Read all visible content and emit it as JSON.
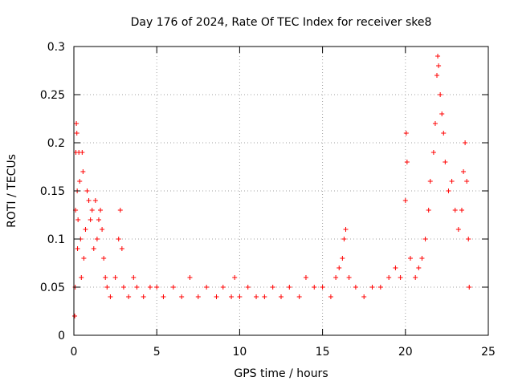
{
  "chart_data": {
    "type": "scatter",
    "title": "Day 176 of 2024, Rate Of TEC Index for receiver ske8",
    "xlabel": "GPS time / hours",
    "ylabel": "ROTI / TECUs",
    "xlim": [
      0,
      25
    ],
    "ylim": [
      0,
      0.3
    ],
    "xticks": [
      0,
      5,
      10,
      15,
      20,
      25
    ],
    "xtick_labels": [
      "0",
      "5",
      "10",
      "15",
      "20",
      "25"
    ],
    "yticks": [
      0,
      0.05,
      0.1,
      0.15,
      0.2,
      0.25,
      0.3
    ],
    "ytick_labels": [
      "0",
      "0.05",
      "0.1",
      "0.15",
      "0.2",
      "0.25",
      "0.3"
    ],
    "grid": true,
    "marker": "+",
    "color": "#ff0000",
    "series": [
      {
        "name": "ROTI",
        "points": [
          [
            0.05,
            0.02
          ],
          [
            0.08,
            0.05
          ],
          [
            0.1,
            0.13
          ],
          [
            0.12,
            0.19
          ],
          [
            0.15,
            0.22
          ],
          [
            0.18,
            0.21
          ],
          [
            0.2,
            0.15
          ],
          [
            0.22,
            0.09
          ],
          [
            0.25,
            0.12
          ],
          [
            0.3,
            0.19
          ],
          [
            0.35,
            0.16
          ],
          [
            0.4,
            0.1
          ],
          [
            0.45,
            0.06
          ],
          [
            0.5,
            0.19
          ],
          [
            0.55,
            0.17
          ],
          [
            0.6,
            0.08
          ],
          [
            0.7,
            0.11
          ],
          [
            0.8,
            0.15
          ],
          [
            0.9,
            0.14
          ],
          [
            1.0,
            0.12
          ],
          [
            1.1,
            0.13
          ],
          [
            1.2,
            0.09
          ],
          [
            1.3,
            0.14
          ],
          [
            1.4,
            0.1
          ],
          [
            1.5,
            0.12
          ],
          [
            1.6,
            0.13
          ],
          [
            1.7,
            0.11
          ],
          [
            1.8,
            0.08
          ],
          [
            1.9,
            0.06
          ],
          [
            2.0,
            0.05
          ],
          [
            2.2,
            0.04
          ],
          [
            2.5,
            0.06
          ],
          [
            2.7,
            0.1
          ],
          [
            2.8,
            0.13
          ],
          [
            2.9,
            0.09
          ],
          [
            3.0,
            0.05
          ],
          [
            3.3,
            0.04
          ],
          [
            3.6,
            0.06
          ],
          [
            3.8,
            0.05
          ],
          [
            4.2,
            0.04
          ],
          [
            4.6,
            0.05
          ],
          [
            5.0,
            0.05
          ],
          [
            5.4,
            0.04
          ],
          [
            6.0,
            0.05
          ],
          [
            6.5,
            0.04
          ],
          [
            7.0,
            0.06
          ],
          [
            7.5,
            0.04
          ],
          [
            8.0,
            0.05
          ],
          [
            8.6,
            0.04
          ],
          [
            9.0,
            0.05
          ],
          [
            9.5,
            0.04
          ],
          [
            9.7,
            0.06
          ],
          [
            10.0,
            0.04
          ],
          [
            10.5,
            0.05
          ],
          [
            11.0,
            0.04
          ],
          [
            11.5,
            0.04
          ],
          [
            12.0,
            0.05
          ],
          [
            12.5,
            0.04
          ],
          [
            13.0,
            0.05
          ],
          [
            13.6,
            0.04
          ],
          [
            14.0,
            0.06
          ],
          [
            14.5,
            0.05
          ],
          [
            15.0,
            0.05
          ],
          [
            15.5,
            0.04
          ],
          [
            15.8,
            0.06
          ],
          [
            16.0,
            0.07
          ],
          [
            16.2,
            0.08
          ],
          [
            16.3,
            0.1
          ],
          [
            16.4,
            0.11
          ],
          [
            16.6,
            0.06
          ],
          [
            17.0,
            0.05
          ],
          [
            17.5,
            0.04
          ],
          [
            18.0,
            0.05
          ],
          [
            18.5,
            0.05
          ],
          [
            19.0,
            0.06
          ],
          [
            19.4,
            0.07
          ],
          [
            19.7,
            0.06
          ],
          [
            20.0,
            0.14
          ],
          [
            20.05,
            0.21
          ],
          [
            20.1,
            0.18
          ],
          [
            20.3,
            0.08
          ],
          [
            20.6,
            0.06
          ],
          [
            20.8,
            0.07
          ],
          [
            21.0,
            0.08
          ],
          [
            21.2,
            0.1
          ],
          [
            21.4,
            0.13
          ],
          [
            21.5,
            0.16
          ],
          [
            21.7,
            0.19
          ],
          [
            21.8,
            0.22
          ],
          [
            21.9,
            0.27
          ],
          [
            21.95,
            0.29
          ],
          [
            22.0,
            0.28
          ],
          [
            22.1,
            0.25
          ],
          [
            22.2,
            0.23
          ],
          [
            22.3,
            0.21
          ],
          [
            22.4,
            0.18
          ],
          [
            22.6,
            0.15
          ],
          [
            22.8,
            0.16
          ],
          [
            23.0,
            0.13
          ],
          [
            23.2,
            0.11
          ],
          [
            23.4,
            0.13
          ],
          [
            23.5,
            0.17
          ],
          [
            23.6,
            0.2
          ],
          [
            23.7,
            0.16
          ],
          [
            23.8,
            0.1
          ],
          [
            23.85,
            0.05
          ]
        ]
      }
    ]
  }
}
